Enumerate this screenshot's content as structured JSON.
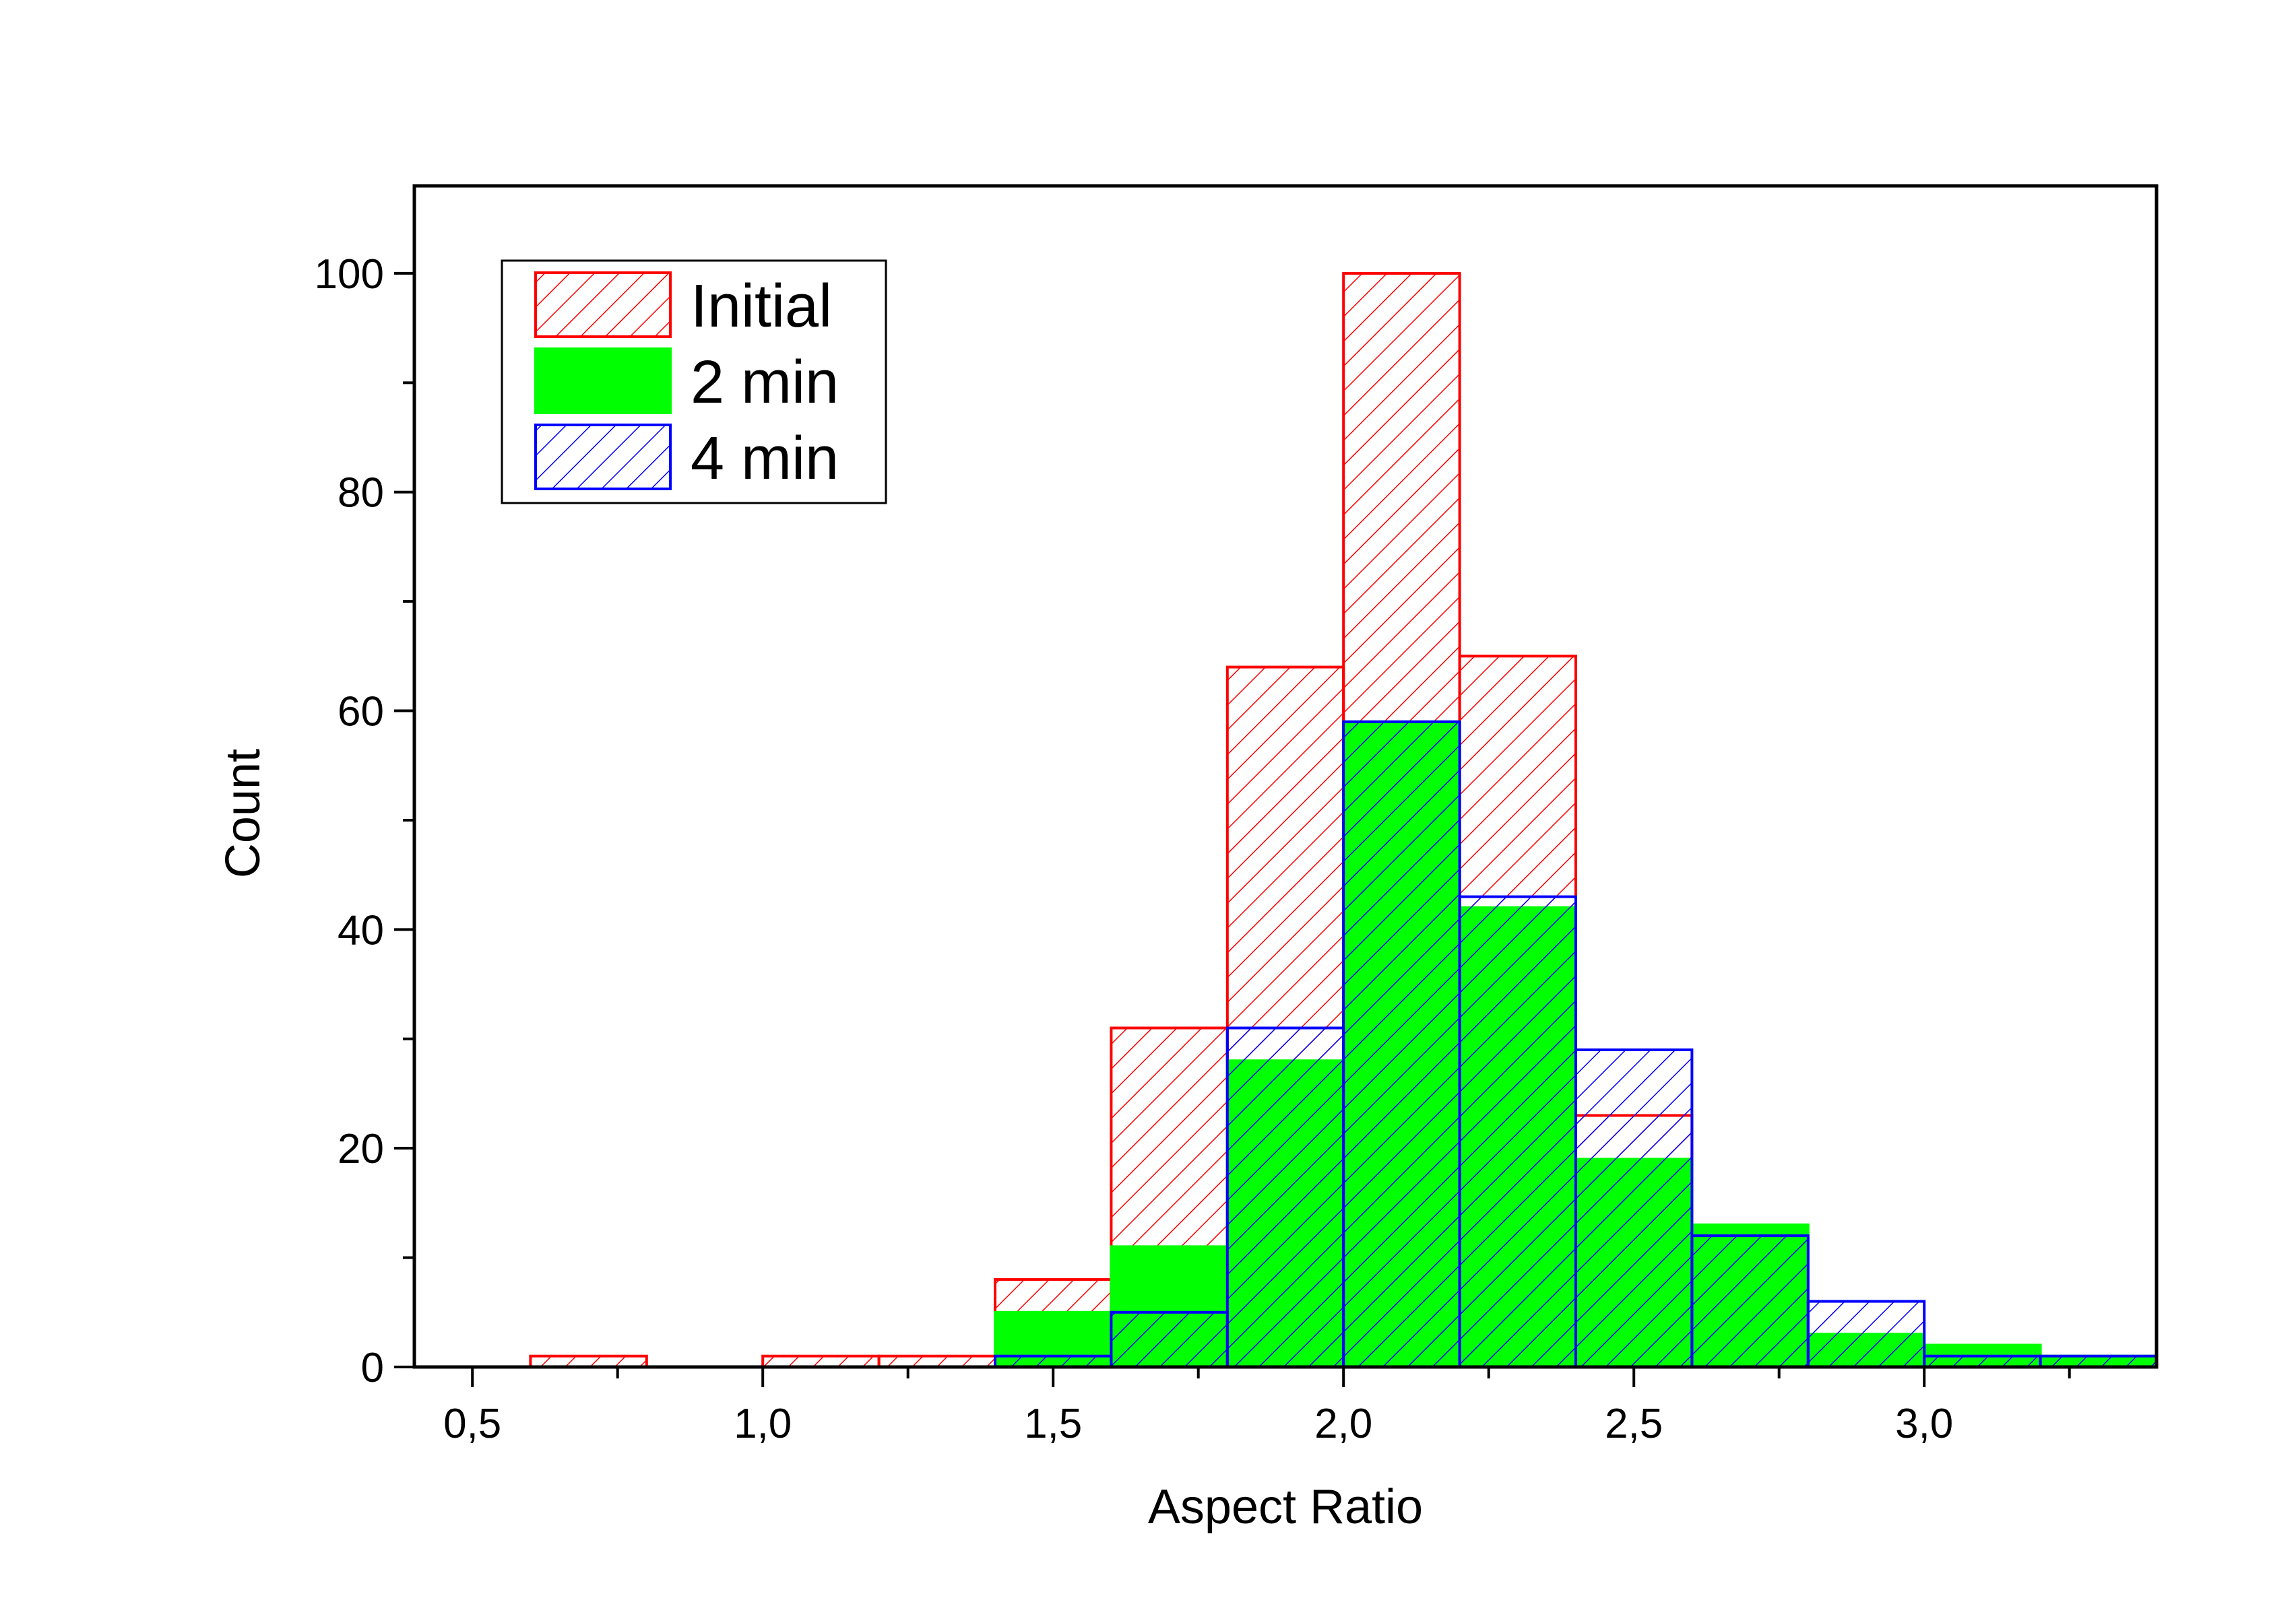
{
  "chart_data": {
    "type": "bar",
    "subtype": "histogram-overlay",
    "xlabel": "Aspect Ratio",
    "ylabel": "Count",
    "xlim": [
      0.4,
      3.4
    ],
    "ylim": [
      0,
      108
    ],
    "bin_width": 0.2,
    "bin_starts": [
      0.6,
      0.8,
      1.0,
      1.2,
      1.4,
      1.6,
      1.8,
      2.0,
      2.2,
      2.4,
      2.6,
      2.8,
      3.0,
      3.2
    ],
    "x_ticks": [
      {
        "value": 0.5,
        "label": "0,5"
      },
      {
        "value": 1.0,
        "label": "1,0"
      },
      {
        "value": 1.5,
        "label": "1,5"
      },
      {
        "value": 2.0,
        "label": "2,0"
      },
      {
        "value": 2.5,
        "label": "2,5"
      },
      {
        "value": 3.0,
        "label": "3,0"
      }
    ],
    "y_ticks": [
      {
        "value": 0,
        "label": "0"
      },
      {
        "value": 20,
        "label": "20"
      },
      {
        "value": 40,
        "label": "40"
      },
      {
        "value": 60,
        "label": "60"
      },
      {
        "value": 80,
        "label": "80"
      },
      {
        "value": 100,
        "label": "100"
      }
    ],
    "grid": false,
    "legend_position": "top-left",
    "series": [
      {
        "name": "Initial",
        "style": "hatch",
        "color": "#ff0000",
        "values": [
          1,
          0,
          1,
          1,
          8,
          31,
          64,
          100,
          65,
          23,
          0,
          0,
          0,
          0
        ]
      },
      {
        "name": "2 min",
        "style": "solid",
        "color": "#00ff00",
        "values": [
          0,
          0,
          0,
          0,
          5,
          11,
          28,
          59,
          42,
          19,
          13,
          3,
          2,
          1
        ]
      },
      {
        "name": "4 min",
        "style": "hatch",
        "color": "#0000ff",
        "values": [
          0,
          0,
          0,
          0,
          1,
          5,
          31,
          59,
          43,
          29,
          12,
          6,
          1,
          1
        ]
      }
    ]
  }
}
